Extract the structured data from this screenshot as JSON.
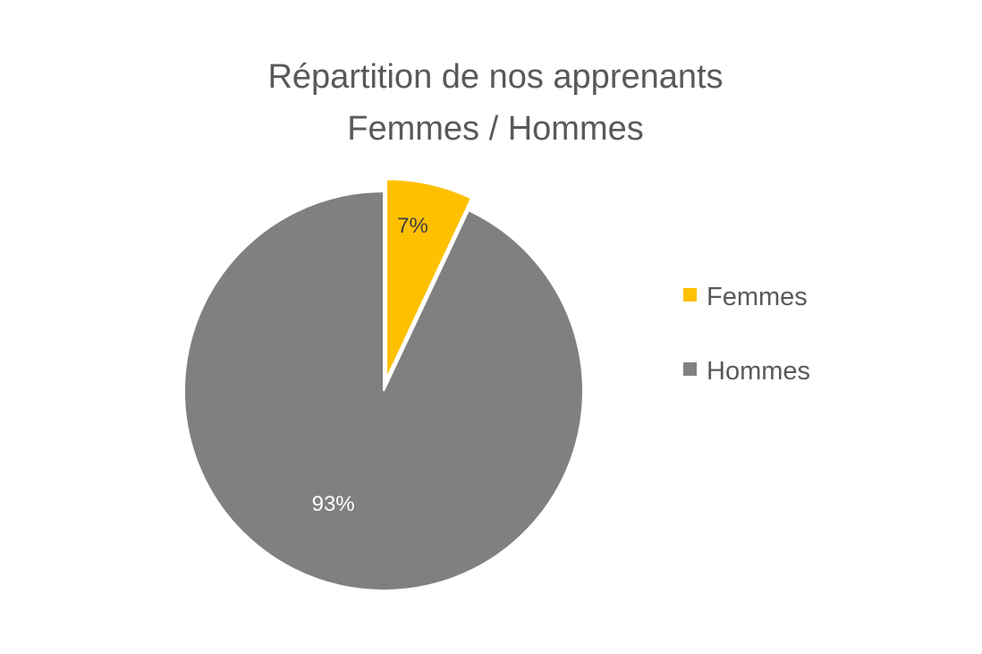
{
  "chart_data": {
    "type": "pie",
    "title": "Répartition de nos apprenants",
    "subtitle": "Femmes / Hommes",
    "categories": [
      "Femmes",
      "Hommes"
    ],
    "values": [
      7,
      93
    ],
    "data_labels": [
      "7%",
      "93%"
    ],
    "colors": [
      "#FFC000",
      "#808080"
    ],
    "label_colors": [
      "#404040",
      "#ffffff"
    ],
    "exploded": [
      "Femmes"
    ],
    "legend_placement": "right"
  }
}
